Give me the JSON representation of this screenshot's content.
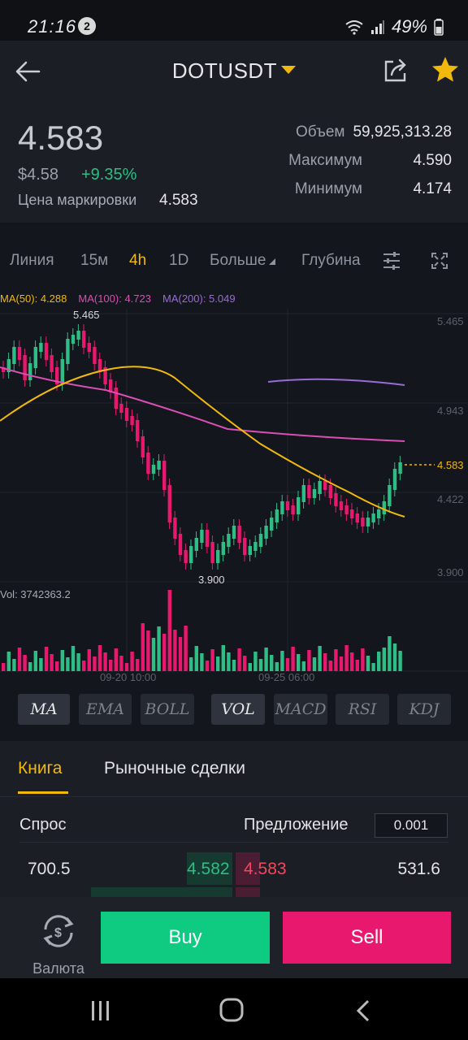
{
  "status_bar": {
    "time": "21:16",
    "notification_count": "2",
    "battery": "49%"
  },
  "header": {
    "pair": "DOTUSDT"
  },
  "price": {
    "last": "4.583",
    "fiat": "$4.58",
    "change": "+9.35%",
    "mark_label": "Цена маркировки",
    "mark_value": "4.583",
    "volume_label": "Объем",
    "volume_value": "59,925,313.28",
    "high_label": "Максимум",
    "high_value": "4.590",
    "low_label": "Минимум",
    "low_value": "4.174"
  },
  "timeframes": {
    "line": "Линия",
    "m15": "15м",
    "h4": "4h",
    "d1": "1D",
    "more": "Больше",
    "depth": "Глубина"
  },
  "chart": {
    "ma50": "MA(50): 4.288",
    "ma100": "MA(100): 4.723",
    "ma200": "MA(200): 5.049",
    "high_marker": "5.465",
    "low_marker": "3.900",
    "price_tag": "4.583",
    "axis": [
      "5.465",
      "4.943",
      "4.422",
      "3.900"
    ],
    "vol_label": "Vol: 3742363.2",
    "date1": "09-20 10:00",
    "date2": "09-25 06:00",
    "colors": {
      "up": "#2ebd85",
      "down": "#e8186f",
      "ma50": "#f0b90b",
      "ma100": "#d94fb4",
      "ma200": "#9c6ad7"
    }
  },
  "chart_data": {
    "type": "candlestick",
    "y_axis_ticks": [
      5.465,
      4.943,
      4.422,
      3.9
    ],
    "ylim": [
      3.9,
      5.465
    ],
    "current_price": 4.583,
    "annotated_high": 5.465,
    "annotated_low": 3.9,
    "x_labels": [
      "09-20 10:00",
      "09-25 06:00"
    ],
    "volume_label": "Vol: 3742363.2",
    "series": [
      {
        "name": "MA(50)",
        "last": 4.288
      },
      {
        "name": "MA(100)",
        "last": 4.723
      },
      {
        "name": "MA(200)",
        "last": 5.049
      }
    ]
  },
  "indicators": [
    "MA",
    "EMA",
    "BOLL",
    "VOL",
    "MACD",
    "RSI",
    "KDJ"
  ],
  "book": {
    "tab_book": "Книга",
    "tab_trades": "Рыночные сделки",
    "bid_label": "Спрос",
    "ask_label": "Предложение",
    "precision": "0.001",
    "row": {
      "bid_qty": "700.5",
      "bid_price": "4.582",
      "ask_price": "4.583",
      "ask_qty": "531.6"
    }
  },
  "actions": {
    "currency": "Валюта",
    "buy": "Buy",
    "sell": "Sell"
  }
}
